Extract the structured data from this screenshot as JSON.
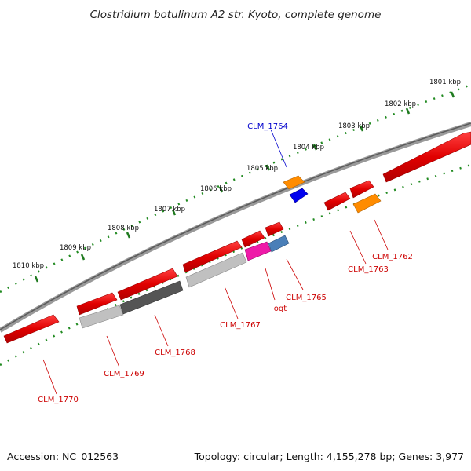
{
  "title": "Clostridium botulinum A2 str. Kyoto, complete genome",
  "footer": {
    "accession": "Accession: NC_012563",
    "topology": "Topology: circular; Length: 4,155,278 bp; Genes: 3,977"
  },
  "ticks": [
    "1801 kbp",
    "1802 kbp",
    "1803 kbp",
    "1804 kbp",
    "1805 kbp",
    "1806 kbp",
    "1807 kbp",
    "1808 kbp",
    "1809 kbp",
    "1810 kbp"
  ],
  "genes": [
    {
      "label": "CLM_1770",
      "color": "#cc0000"
    },
    {
      "label": "CLM_1769",
      "color": "#cc0000"
    },
    {
      "label": "CLM_1768",
      "color": "#cc0000"
    },
    {
      "label": "CLM_1767",
      "color": "#cc0000"
    },
    {
      "label": "ogt",
      "color": "#cc0000"
    },
    {
      "label": "CLM_1765",
      "color": "#cc0000"
    },
    {
      "label": "CLM_1764",
      "color": "#0000cc"
    },
    {
      "label": "CLM_1763",
      "color": "#cc0000"
    },
    {
      "label": "CLM_1762",
      "color": "#cc0000"
    }
  ],
  "colors": {
    "cds": "#e00000",
    "blue_feature": "#0000ee",
    "orange_feature": "#ff8c00",
    "magenta_feature": "#ee1aa8",
    "steelblue_feature": "#4a7fb8",
    "light_gray_feature": "#c0c0c0",
    "dark_gray_feature": "#555555",
    "backbone": "#777777",
    "tick_green": "#228b22"
  }
}
